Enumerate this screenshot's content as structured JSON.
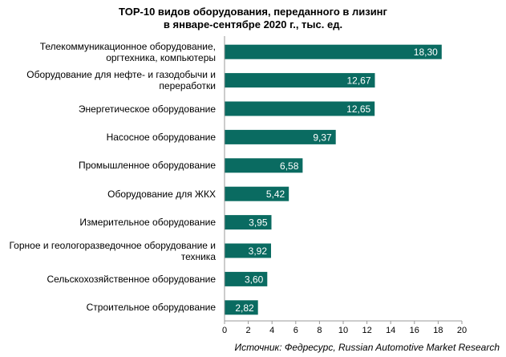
{
  "colors": {
    "bar": "#0a6b61",
    "axis": "#999999",
    "value_text": "#ffffff"
  },
  "chart_data": {
    "type": "bar",
    "orientation": "horizontal",
    "title_lines": [
      "TOP-10 видов оборудования, переданного в лизинг",
      "в январе-сентябре 2020 г., тыс. ед."
    ],
    "categories": [
      "Телекоммуникационное оборудование, оргтехника, компьютеры",
      "Оборудование для нефте- и газодобычи и переработки",
      "Энергетическое оборудование",
      "Насосное оборудование",
      "Промышленное оборудование",
      "Оборудование для ЖКХ",
      "Измерительное оборудование",
      "Горное и геологоразведочное оборудование и техника",
      "Сельскохозяйственное оборудование",
      "Строительное оборудование"
    ],
    "category_lines": [
      [
        "Телекоммуникационное оборудование,",
        "оргтехника, компьютеры"
      ],
      [
        "Оборудование для нефте- и газодобычи и",
        "переработки"
      ],
      [
        "Энергетическое оборудование"
      ],
      [
        "Насосное оборудование"
      ],
      [
        "Промышленное оборудование"
      ],
      [
        "Оборудование для ЖКХ"
      ],
      [
        "Измерительное оборудование"
      ],
      [
        "Горное и геологоразведочное оборудование и",
        "техника"
      ],
      [
        "Сельскохозяйственное оборудование"
      ],
      [
        "Строительное оборудование"
      ]
    ],
    "values": [
      18.3,
      12.67,
      12.65,
      9.37,
      6.58,
      5.42,
      3.95,
      3.92,
      3.6,
      2.82
    ],
    "value_labels": [
      "18,30",
      "12,67",
      "12,65",
      "9,37",
      "6,58",
      "5,42",
      "3,95",
      "3,92",
      "3,60",
      "2,82"
    ],
    "xlim": [
      0,
      20
    ],
    "xticks": [
      "0",
      "2",
      "4",
      "6",
      "8",
      "10",
      "12",
      "14",
      "16",
      "18",
      "20"
    ],
    "xlabel": "",
    "ylabel": "",
    "grid": false,
    "legend": "none"
  },
  "source": "Источник: Федресурс, Russian Automotive Market Research"
}
